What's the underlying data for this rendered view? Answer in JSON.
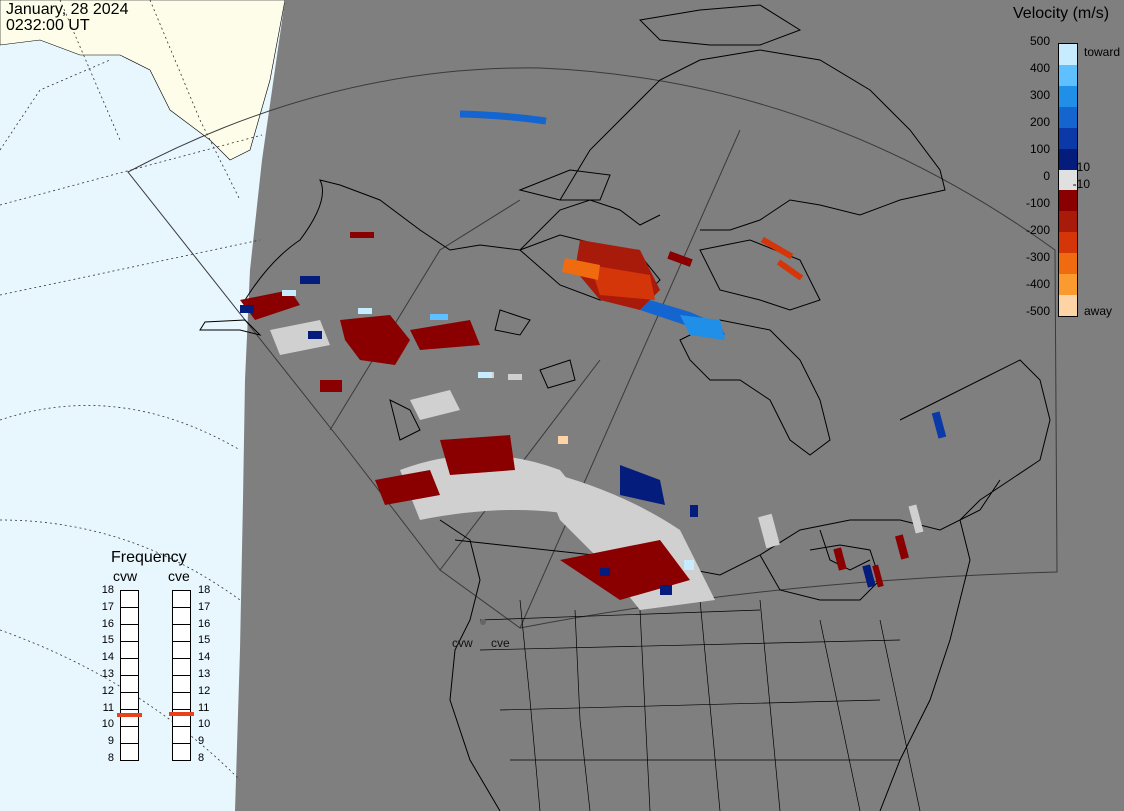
{
  "header": {
    "date": "January, 28 2024",
    "time": "0232:00 UT"
  },
  "velocity_scale": {
    "title": "Velocity (m/s)",
    "ticks": [
      "500",
      "400",
      "300",
      "200",
      "100",
      "10",
      "0",
      "-10",
      "-100",
      "-200",
      "-300",
      "-400",
      "-500"
    ],
    "toward_label": "toward",
    "away_label": "away",
    "colors": [
      "#c8ecff",
      "#5fc0ff",
      "#1f8fe8",
      "#1565d0",
      "#0b3aa8",
      "#041c7c",
      "#e0e0e0",
      "#8a0000",
      "#a81a0a",
      "#d4360a",
      "#f06a10",
      "#fb9a2e",
      "#fdd4a6"
    ]
  },
  "frequency_panel": {
    "title": "Frequency",
    "radars": [
      {
        "name": "cvw",
        "value_mhz": 10.6
      },
      {
        "name": "cve",
        "value_mhz": 10.7
      }
    ],
    "range": [
      8,
      18
    ],
    "labels": [
      "18",
      "17",
      "16",
      "15",
      "14",
      "13",
      "12",
      "11",
      "10",
      "9",
      "8"
    ]
  },
  "map": {
    "radar_sites": [
      "cvw",
      "cve"
    ],
    "colors": {
      "ocean": "#e8f6fd",
      "land_unlit": "#fdfdea",
      "night": "#7f7f7f",
      "ground_scatter": "#d0d0d0",
      "coast": "#000000"
    }
  }
}
